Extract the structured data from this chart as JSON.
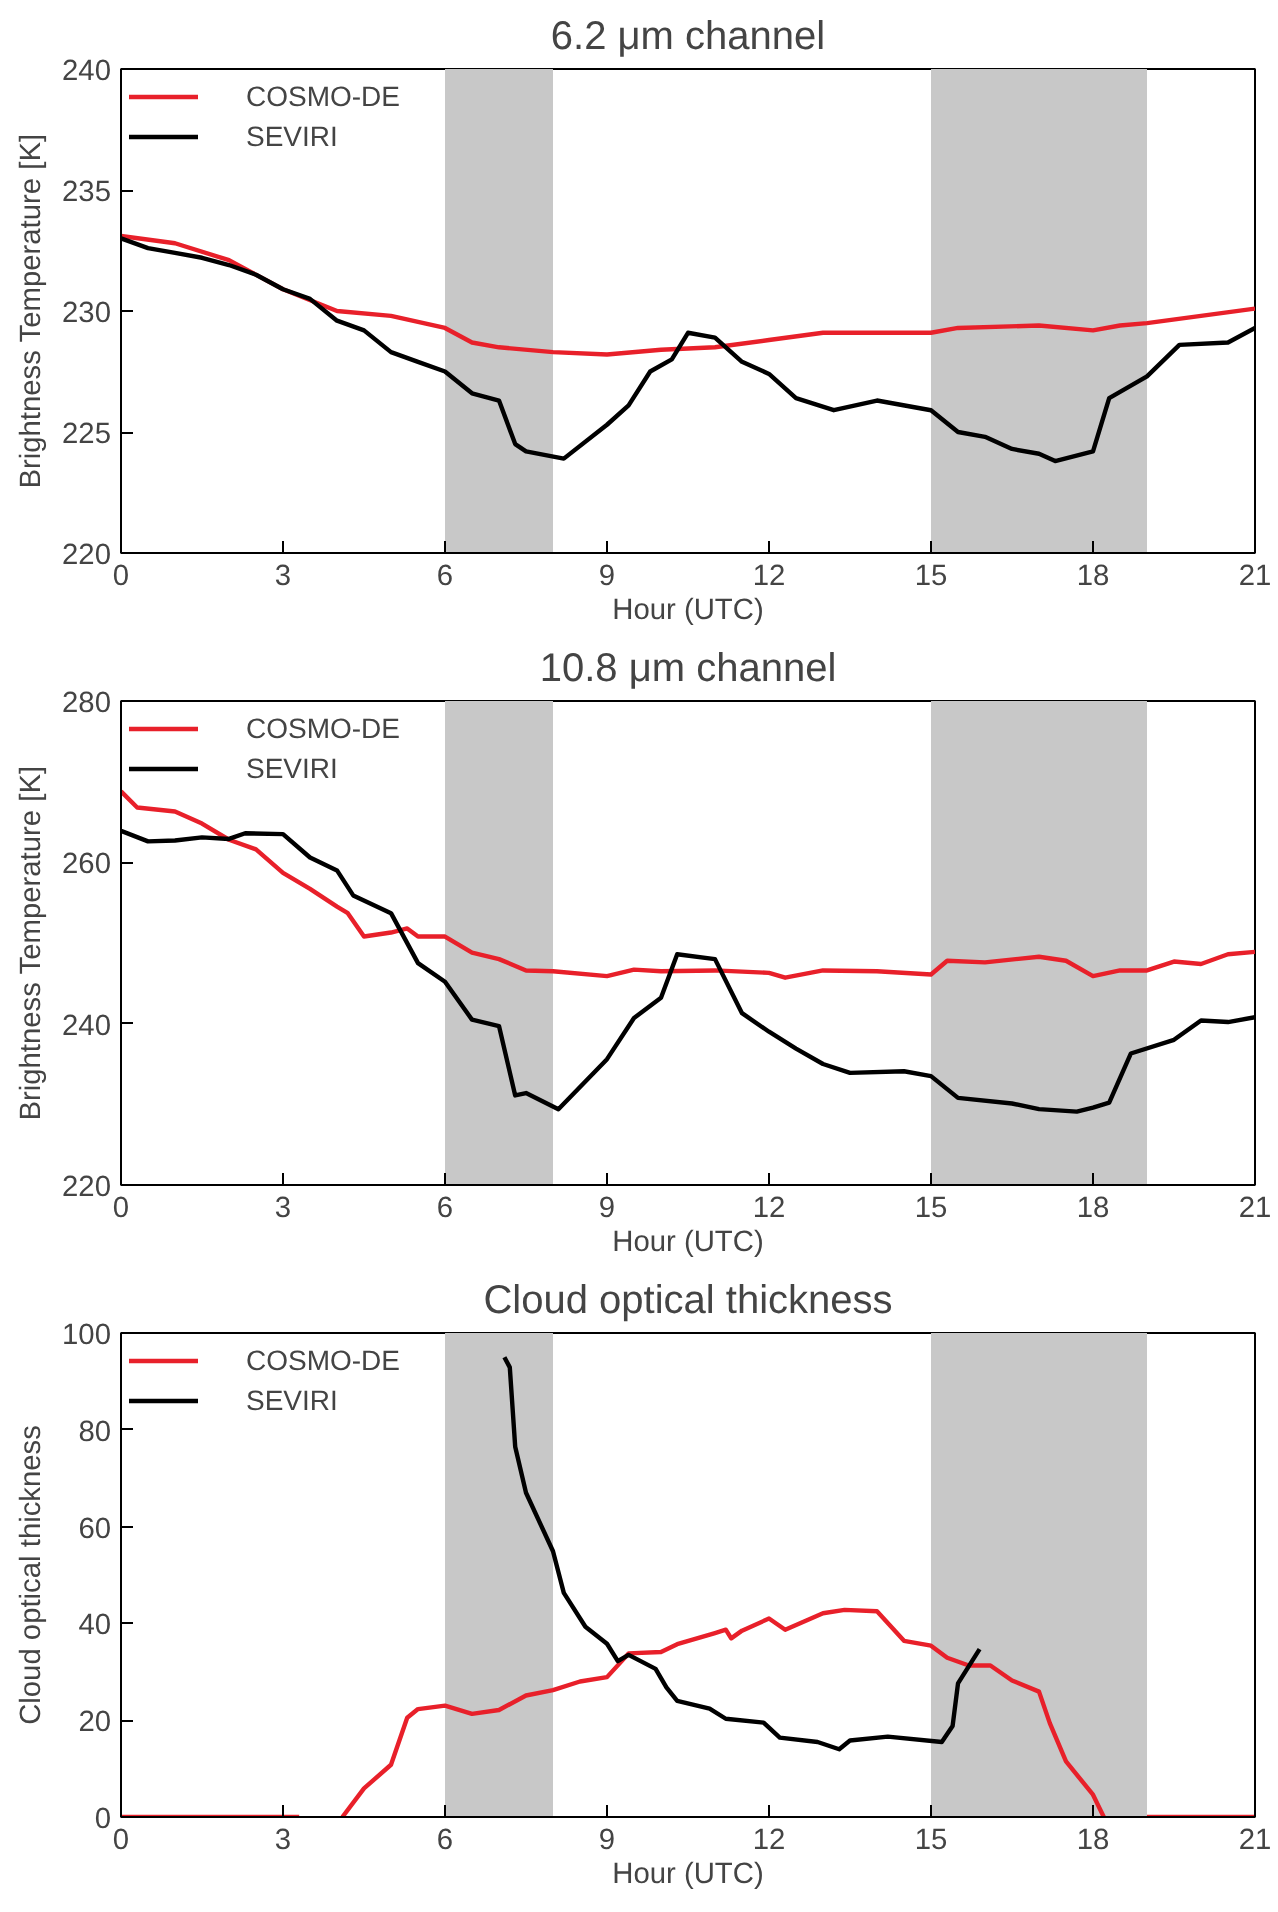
{
  "chart_data": [
    {
      "type": "line",
      "title": "6.2 μm channel",
      "xlabel": "Hour (UTC)",
      "ylabel": "Brightness Temperature [K]",
      "xlim": [
        0,
        21
      ],
      "xticks": [
        0,
        3,
        6,
        9,
        12,
        15,
        18,
        21
      ],
      "ylim": [
        220,
        240
      ],
      "yticks": [
        220,
        225,
        230,
        235,
        240
      ],
      "grid": false,
      "legend": "top left",
      "line_style": "solid",
      "marker": "none",
      "bands": [
        {
          "axis": "x",
          "from": 6,
          "to": 8,
          "color": "#c8c8c8"
        },
        {
          "axis": "x",
          "from": 15,
          "to": 19,
          "color": "#c8c8c8"
        }
      ],
      "series": [
        {
          "name": "COSMO-DE",
          "color": "#e8202a",
          "x": [
            0,
            1,
            2,
            3,
            4,
            5,
            6,
            6.5,
            7,
            8,
            9,
            10,
            11,
            12,
            13,
            14,
            15,
            15.5,
            17,
            18,
            18.5,
            19,
            20,
            21
          ],
          "values": [
            233.1,
            232.8,
            232.1,
            230.9,
            230.0,
            229.8,
            229.3,
            228.7,
            228.5,
            228.3,
            228.2,
            228.4,
            228.5,
            228.8,
            229.1,
            229.1,
            229.1,
            229.3,
            229.4,
            229.2,
            229.4,
            229.5,
            229.8,
            230.1
          ]
        },
        {
          "name": "SEVIRI",
          "color": "#000000",
          "x": [
            0,
            0.5,
            1,
            1.5,
            2,
            2.5,
            3,
            3.5,
            4,
            4.5,
            5,
            5.5,
            6,
            6.5,
            7,
            7.3,
            7.5,
            8.2,
            9,
            9.4,
            9.8,
            10.2,
            10.5,
            11,
            11.5,
            12,
            12.5,
            13.2,
            14,
            15,
            15.5,
            16,
            16.5,
            17,
            17.3,
            18,
            18.3,
            19,
            19.6,
            20.5,
            21
          ],
          "values": [
            233.0,
            232.6,
            232.4,
            232.2,
            231.9,
            231.5,
            230.9,
            230.5,
            229.6,
            229.2,
            228.3,
            227.9,
            227.5,
            226.6,
            226.3,
            224.5,
            224.2,
            223.9,
            225.3,
            226.1,
            227.5,
            228.0,
            229.1,
            228.9,
            227.9,
            227.4,
            226.4,
            225.9,
            226.3,
            225.9,
            225.0,
            224.8,
            224.3,
            224.1,
            223.8,
            224.2,
            226.4,
            227.3,
            228.6,
            228.7,
            229.3
          ]
        }
      ]
    },
    {
      "type": "line",
      "title": "10.8 μm channel",
      "xlabel": "Hour (UTC)",
      "ylabel": "Brightness Temperature [K]",
      "xlim": [
        0,
        21
      ],
      "xticks": [
        0,
        3,
        6,
        9,
        12,
        15,
        18,
        21
      ],
      "ylim": [
        220,
        280
      ],
      "yticks": [
        220,
        240,
        260,
        280
      ],
      "grid": false,
      "legend": "top left",
      "line_style": "solid",
      "marker": "none",
      "bands": [
        {
          "axis": "x",
          "from": 6,
          "to": 8,
          "color": "#c8c8c8"
        },
        {
          "axis": "x",
          "from": 15,
          "to": 19,
          "color": "#c8c8c8"
        }
      ],
      "series": [
        {
          "name": "COSMO-DE",
          "color": "#e8202a",
          "x": [
            0,
            0.3,
            1,
            1.5,
            2,
            2.5,
            3,
            3.5,
            4,
            4.2,
            4.5,
            5,
            5.3,
            5.5,
            6,
            6.5,
            7,
            7.5,
            8,
            9,
            9.5,
            10,
            11,
            12,
            12.3,
            13,
            14,
            15,
            15.3,
            16,
            17,
            17.5,
            18,
            18.5,
            19,
            19.5,
            20,
            20.5,
            21
          ],
          "values": [
            268.8,
            266.8,
            266.3,
            264.8,
            262.8,
            261.6,
            258.7,
            256.7,
            254.5,
            253.7,
            250.8,
            251.3,
            251.8,
            250.8,
            250.8,
            248.8,
            248.0,
            246.6,
            246.5,
            245.9,
            246.7,
            246.5,
            246.6,
            246.3,
            245.7,
            246.6,
            246.5,
            246.1,
            247.8,
            247.6,
            248.3,
            247.8,
            245.9,
            246.6,
            246.6,
            247.7,
            247.4,
            248.6,
            248.9
          ]
        },
        {
          "name": "SEVIRI",
          "color": "#000000",
          "x": [
            0,
            0.5,
            1,
            1.5,
            2,
            2.3,
            3,
            3.5,
            4,
            4.3,
            5,
            5.5,
            6,
            6.5,
            7,
            7.3,
            7.5,
            8.1,
            9,
            9.5,
            10,
            10.3,
            11,
            11.5,
            12,
            12.5,
            13,
            13.5,
            14.5,
            15,
            15.5,
            16.5,
            17,
            17.7,
            18,
            18.3,
            18.7,
            19.5,
            20,
            20.5,
            21
          ],
          "values": [
            263.9,
            262.6,
            262.7,
            263.1,
            262.9,
            263.6,
            263.5,
            260.6,
            259.0,
            255.9,
            253.7,
            247.5,
            245.2,
            240.5,
            239.7,
            231.1,
            231.4,
            229.4,
            235.6,
            240.7,
            243.2,
            248.6,
            248.0,
            241.3,
            239.0,
            236.9,
            235.0,
            233.9,
            234.1,
            233.5,
            230.8,
            230.1,
            229.4,
            229.1,
            229.6,
            230.2,
            236.3,
            238.0,
            240.4,
            240.2,
            240.8
          ]
        }
      ]
    },
    {
      "type": "line",
      "title": "Cloud optical thickness",
      "xlabel": "Hour (UTC)",
      "ylabel": "Cloud optical thickness",
      "xlim": [
        0,
        21
      ],
      "xticks": [
        0,
        3,
        6,
        9,
        12,
        15,
        18,
        21
      ],
      "ylim": [
        0,
        100
      ],
      "yticks": [
        0,
        20,
        40,
        60,
        80,
        100
      ],
      "grid": false,
      "legend": "top left",
      "line_style": "solid",
      "marker": "none",
      "bands": [
        {
          "axis": "x",
          "from": 6,
          "to": 8,
          "color": "#c8c8c8"
        },
        {
          "axis": "x",
          "from": 15,
          "to": 19,
          "color": "#c8c8c8"
        }
      ],
      "series": [
        {
          "name": "COSMO-DE",
          "color": "#e8202a",
          "x": [
            0,
            3.3,
            3.7,
            4.1,
            4.5,
            5,
            5.3,
            5.5,
            6,
            6.5,
            7,
            7.5,
            8,
            8.5,
            9,
            9.4,
            10,
            10.3,
            11,
            11.2,
            11.3,
            11.5,
            12,
            12.3,
            13,
            13.4,
            14,
            14.5,
            15,
            15.3,
            15.7,
            16.1,
            16.5,
            17,
            17.2,
            17.5,
            18,
            18.2,
            18.6,
            19,
            21
          ],
          "values": [
            0,
            0,
            null,
            0,
            5.9,
            10.8,
            20.5,
            22.3,
            23.0,
            21.3,
            22.1,
            25.1,
            26.2,
            28.0,
            28.9,
            33.8,
            34.1,
            35.7,
            38.0,
            38.7,
            36.9,
            38.5,
            41.0,
            38.7,
            42.1,
            42.8,
            42.5,
            36.4,
            35.4,
            32.9,
            31.3,
            31.3,
            28.2,
            25.9,
            19.4,
            11.5,
            4.6,
            0,
            null,
            0,
            0
          ]
        },
        {
          "name": "SEVIRI",
          "color": "#000000",
          "x": [
            7.1,
            7.2,
            7.3,
            7.5,
            8,
            8.2,
            8.6,
            9,
            9.2,
            9.4,
            9.9,
            10.1,
            10.3,
            10.9,
            11.2,
            11.9,
            12.2,
            12.9,
            13.3,
            13.5,
            14.2,
            15.2,
            15.4,
            15.5,
            15.9
          ],
          "values": [
            95,
            92.9,
            76.5,
            67.0,
            54.9,
            46.3,
            39.3,
            35.8,
            32.2,
            33.5,
            30.6,
            26.8,
            24.0,
            22.4,
            20.3,
            19.5,
            16.4,
            15.5,
            14.0,
            15.8,
            16.6,
            15.5,
            18.8,
            27.6,
            34.7
          ]
        }
      ]
    }
  ]
}
